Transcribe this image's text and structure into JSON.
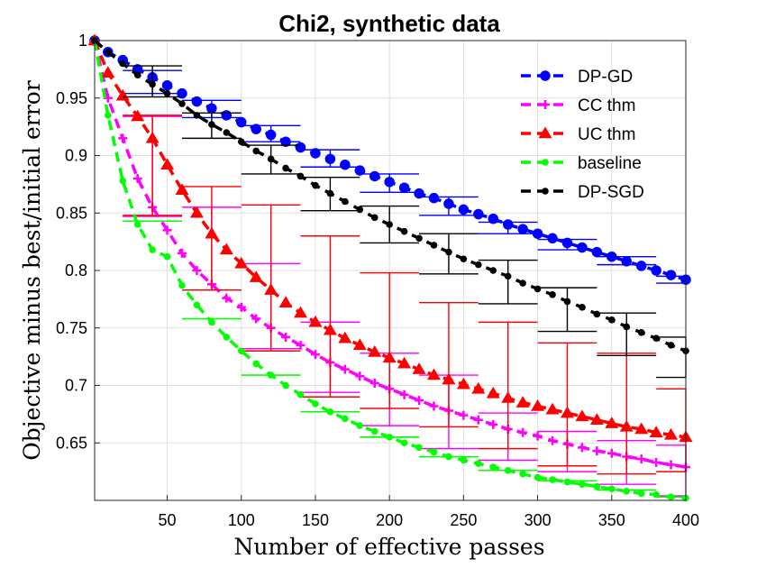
{
  "chart_data": {
    "type": "line",
    "title": "Chi2, synthetic data",
    "xlabel": "Number of effective passes",
    "ylabel": "Objective minus best/initial error",
    "xlim": [
      1,
      400
    ],
    "ylim": [
      0.6,
      1.0
    ],
    "xticks": [
      50,
      100,
      150,
      200,
      250,
      300,
      350,
      400
    ],
    "yticks": [
      0.65,
      0.7,
      0.75,
      0.8,
      0.85,
      0.9,
      0.95,
      1
    ],
    "ytick_labels": [
      "0.65",
      "0.7",
      "0.75",
      "0.8",
      "0.85",
      "0.9",
      "0.95",
      "1"
    ],
    "grid": true,
    "legend_position": "top-right",
    "series": [
      {
        "name": "DP-GD",
        "color": "#0000ff",
        "marker": "circle",
        "x": [
          1,
          10,
          20,
          30,
          40,
          50,
          60,
          70,
          80,
          90,
          100,
          110,
          120,
          130,
          140,
          150,
          160,
          170,
          180,
          190,
          200,
          210,
          220,
          230,
          240,
          250,
          260,
          270,
          280,
          290,
          300,
          310,
          320,
          330,
          340,
          350,
          360,
          370,
          380,
          390,
          400
        ],
        "y": [
          1.0,
          0.99,
          0.983,
          0.975,
          0.968,
          0.961,
          0.954,
          0.947,
          0.941,
          0.935,
          0.929,
          0.923,
          0.918,
          0.912,
          0.907,
          0.902,
          0.897,
          0.892,
          0.887,
          0.882,
          0.877,
          0.872,
          0.867,
          0.863,
          0.858,
          0.853,
          0.849,
          0.845,
          0.84,
          0.836,
          0.832,
          0.828,
          0.824,
          0.82,
          0.816,
          0.812,
          0.808,
          0.804,
          0.8,
          0.796,
          0.792
        ],
        "error_bars": [
          {
            "x": 40,
            "low": 0.954,
            "high": 0.974,
            "half_width": 20
          },
          {
            "x": 80,
            "low": 0.933,
            "high": 0.948,
            "half_width": 20
          },
          {
            "x": 120,
            "low": 0.912,
            "high": 0.926,
            "half_width": 20
          },
          {
            "x": 160,
            "low": 0.89,
            "high": 0.905,
            "half_width": 20
          },
          {
            "x": 200,
            "low": 0.868,
            "high": 0.884,
            "half_width": 20
          },
          {
            "x": 240,
            "low": 0.848,
            "high": 0.864,
            "half_width": 20
          },
          {
            "x": 280,
            "low": 0.832,
            "high": 0.842,
            "half_width": 20
          },
          {
            "x": 320,
            "low": 0.818,
            "high": 0.827,
            "half_width": 20
          },
          {
            "x": 360,
            "low": 0.805,
            "high": 0.812,
            "half_width": 20
          },
          {
            "x": 400,
            "low": 0.789,
            "high": 0.795,
            "half_width": 20
          }
        ]
      },
      {
        "name": "CC thm",
        "color": "#ff00ff",
        "marker": "plus",
        "x": [
          1,
          10,
          20,
          30,
          40,
          50,
          60,
          70,
          80,
          90,
          100,
          110,
          120,
          130,
          140,
          150,
          160,
          170,
          180,
          190,
          200,
          210,
          220,
          230,
          240,
          250,
          260,
          270,
          280,
          290,
          300,
          310,
          320,
          330,
          340,
          350,
          360,
          370,
          380,
          390,
          400
        ],
        "y": [
          1.0,
          0.95,
          0.915,
          0.88,
          0.855,
          0.835,
          0.815,
          0.8,
          0.788,
          0.776,
          0.768,
          0.758,
          0.75,
          0.742,
          0.735,
          0.727,
          0.72,
          0.714,
          0.708,
          0.702,
          0.697,
          0.692,
          0.687,
          0.682,
          0.678,
          0.674,
          0.67,
          0.666,
          0.662,
          0.659,
          0.656,
          0.652,
          0.649,
          0.646,
          0.643,
          0.641,
          0.638,
          0.636,
          0.633,
          0.631,
          0.629
        ],
        "error_bars": [
          {
            "x": 40,
            "low": 0.847,
            "high": 0.934,
            "half_width": 20
          },
          {
            "x": 80,
            "low": 0.783,
            "high": 0.855,
            "half_width": 20
          },
          {
            "x": 120,
            "low": 0.732,
            "high": 0.806,
            "half_width": 20
          },
          {
            "x": 160,
            "low": 0.694,
            "high": 0.755,
            "half_width": 20
          },
          {
            "x": 200,
            "low": 0.665,
            "high": 0.728,
            "half_width": 20
          },
          {
            "x": 240,
            "low": 0.645,
            "high": 0.709,
            "half_width": 20
          },
          {
            "x": 280,
            "low": 0.635,
            "high": 0.676,
            "half_width": 20
          },
          {
            "x": 320,
            "low": 0.625,
            "high": 0.66,
            "half_width": 20
          },
          {
            "x": 360,
            "low": 0.614,
            "high": 0.652,
            "half_width": 20
          },
          {
            "x": 400,
            "low": 0.604,
            "high": 0.648,
            "half_width": 20
          }
        ]
      },
      {
        "name": "UC thm",
        "color": "#ff0000",
        "marker": "triangle",
        "x": [
          1,
          10,
          20,
          30,
          40,
          50,
          60,
          70,
          80,
          90,
          100,
          110,
          120,
          130,
          140,
          150,
          160,
          170,
          180,
          190,
          200,
          210,
          220,
          230,
          240,
          250,
          260,
          270,
          280,
          290,
          300,
          310,
          320,
          330,
          340,
          350,
          360,
          370,
          380,
          390,
          400
        ],
        "y": [
          1.0,
          0.972,
          0.952,
          0.934,
          0.915,
          0.892,
          0.87,
          0.85,
          0.832,
          0.818,
          0.806,
          0.794,
          0.783,
          0.772,
          0.763,
          0.755,
          0.748,
          0.741,
          0.735,
          0.729,
          0.724,
          0.719,
          0.714,
          0.709,
          0.705,
          0.701,
          0.697,
          0.693,
          0.689,
          0.685,
          0.682,
          0.679,
          0.676,
          0.673,
          0.67,
          0.667,
          0.664,
          0.662,
          0.659,
          0.657,
          0.655
        ],
        "error_bars": [
          {
            "x": 40,
            "low": 0.848,
            "high": 0.935,
            "half_width": 20
          },
          {
            "x": 80,
            "low": 0.783,
            "high": 0.873,
            "half_width": 20
          },
          {
            "x": 120,
            "low": 0.73,
            "high": 0.857,
            "half_width": 20
          },
          {
            "x": 160,
            "low": 0.69,
            "high": 0.83,
            "half_width": 20
          },
          {
            "x": 200,
            "low": 0.68,
            "high": 0.798,
            "half_width": 20
          },
          {
            "x": 240,
            "low": 0.664,
            "high": 0.772,
            "half_width": 20
          },
          {
            "x": 280,
            "low": 0.645,
            "high": 0.755,
            "half_width": 20
          },
          {
            "x": 320,
            "low": 0.63,
            "high": 0.737,
            "half_width": 20
          },
          {
            "x": 360,
            "low": 0.623,
            "high": 0.728,
            "half_width": 20
          },
          {
            "x": 400,
            "low": 0.625,
            "high": 0.697,
            "half_width": 20
          }
        ]
      },
      {
        "name": "baseline",
        "color": "#00ff00",
        "marker": "dot",
        "x": [
          1,
          10,
          20,
          30,
          40,
          50,
          60,
          70,
          80,
          90,
          100,
          110,
          120,
          130,
          140,
          150,
          160,
          170,
          180,
          190,
          200,
          210,
          220,
          230,
          240,
          250,
          260,
          270,
          280,
          290,
          300,
          310,
          320,
          330,
          340,
          350,
          360,
          370,
          380,
          390,
          400
        ],
        "y": [
          1.0,
          0.935,
          0.878,
          0.84,
          0.818,
          0.812,
          0.787,
          0.77,
          0.755,
          0.742,
          0.73,
          0.719,
          0.709,
          0.7,
          0.692,
          0.684,
          0.677,
          0.671,
          0.665,
          0.66,
          0.655,
          0.65,
          0.646,
          0.642,
          0.638,
          0.635,
          0.632,
          0.629,
          0.626,
          0.623,
          0.62,
          0.618,
          0.616,
          0.614,
          0.612,
          0.61,
          0.608,
          0.606,
          0.605,
          0.603,
          0.602
        ],
        "error_bars": [
          {
            "x": 40,
            "low": 0.843,
            "high": 0.843,
            "half_width": 20
          },
          {
            "x": 80,
            "low": 0.758,
            "high": 0.758,
            "half_width": 20
          },
          {
            "x": 120,
            "low": 0.709,
            "high": 0.709,
            "half_width": 20
          },
          {
            "x": 160,
            "low": 0.677,
            "high": 0.677,
            "half_width": 20
          },
          {
            "x": 200,
            "low": 0.655,
            "high": 0.655,
            "half_width": 20
          },
          {
            "x": 240,
            "low": 0.638,
            "high": 0.638,
            "half_width": 20
          },
          {
            "x": 280,
            "low": 0.626,
            "high": 0.626,
            "half_width": 20
          },
          {
            "x": 320,
            "low": 0.617,
            "high": 0.617,
            "half_width": 20
          },
          {
            "x": 360,
            "low": 0.609,
            "high": 0.609,
            "half_width": 20
          },
          {
            "x": 400,
            "low": 0.603,
            "high": 0.603,
            "half_width": 20
          }
        ]
      },
      {
        "name": "DP-SGD",
        "color": "#000000",
        "marker": "dot",
        "x": [
          1,
          10,
          20,
          30,
          40,
          50,
          60,
          70,
          80,
          90,
          100,
          110,
          120,
          130,
          140,
          150,
          160,
          170,
          180,
          190,
          200,
          210,
          220,
          230,
          240,
          250,
          260,
          270,
          280,
          290,
          300,
          310,
          320,
          330,
          340,
          350,
          360,
          370,
          380,
          390,
          400
        ],
        "y": [
          1.0,
          0.99,
          0.98,
          0.97,
          0.962,
          0.954,
          0.945,
          0.935,
          0.927,
          0.92,
          0.912,
          0.904,
          0.897,
          0.889,
          0.882,
          0.874,
          0.867,
          0.86,
          0.853,
          0.846,
          0.84,
          0.834,
          0.828,
          0.822,
          0.816,
          0.81,
          0.805,
          0.8,
          0.795,
          0.789,
          0.784,
          0.779,
          0.773,
          0.768,
          0.762,
          0.757,
          0.751,
          0.746,
          0.741,
          0.735,
          0.73
        ],
        "error_bars": [
          {
            "x": 40,
            "low": 0.951,
            "high": 0.978,
            "half_width": 20
          },
          {
            "x": 80,
            "low": 0.915,
            "high": 0.937,
            "half_width": 20
          },
          {
            "x": 120,
            "low": 0.884,
            "high": 0.909,
            "half_width": 20
          },
          {
            "x": 160,
            "low": 0.852,
            "high": 0.881,
            "half_width": 20
          },
          {
            "x": 200,
            "low": 0.824,
            "high": 0.856,
            "half_width": 20
          },
          {
            "x": 240,
            "low": 0.797,
            "high": 0.832,
            "half_width": 20
          },
          {
            "x": 280,
            "low": 0.771,
            "high": 0.809,
            "half_width": 20
          },
          {
            "x": 320,
            "low": 0.747,
            "high": 0.785,
            "half_width": 20
          },
          {
            "x": 360,
            "low": 0.726,
            "high": 0.763,
            "half_width": 20
          },
          {
            "x": 400,
            "low": 0.707,
            "high": 0.742,
            "half_width": 20
          }
        ]
      }
    ]
  }
}
